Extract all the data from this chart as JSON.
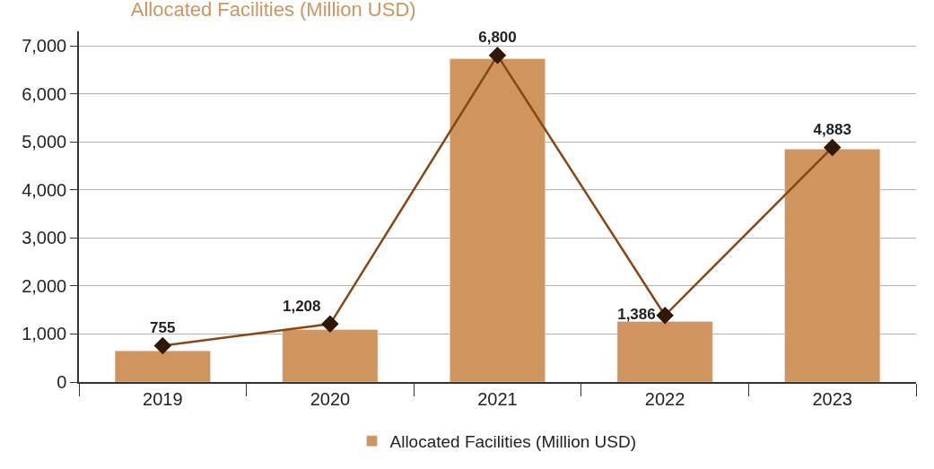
{
  "chart_data": {
    "type": "bar",
    "title": "Allocated Facilities (Million USD)",
    "categories": [
      "2019",
      "2020",
      "2021",
      "2022",
      "2023"
    ],
    "series": [
      {
        "name": "Allocated Facilities (Million USD)",
        "color": "#d0945e",
        "values": [
          650,
          1090,
          6730,
          1260,
          4850
        ]
      },
      {
        "type": "line",
        "color": "#8b4513",
        "marker": "diamond",
        "line_style": "solid",
        "values": [
          755,
          1208,
          6800,
          1386,
          4883
        ],
        "value_labels": [
          "755",
          "1,208",
          "6,800",
          "1,386",
          "4,883"
        ]
      }
    ],
    "ylim": [
      0,
      7300
    ],
    "yticks": [
      {
        "value": 0,
        "label": "0"
      },
      {
        "value": 1000,
        "label": "1,000"
      },
      {
        "value": 2000,
        "label": "2,000"
      },
      {
        "value": 3000,
        "label": "3,000"
      },
      {
        "value": 4000,
        "label": "4,000"
      },
      {
        "value": 5000,
        "label": "5,000"
      },
      {
        "value": 6000,
        "label": "6,000"
      },
      {
        "value": 7000,
        "label": "7,000"
      }
    ],
    "grid": "y",
    "legend": "bottom"
  }
}
